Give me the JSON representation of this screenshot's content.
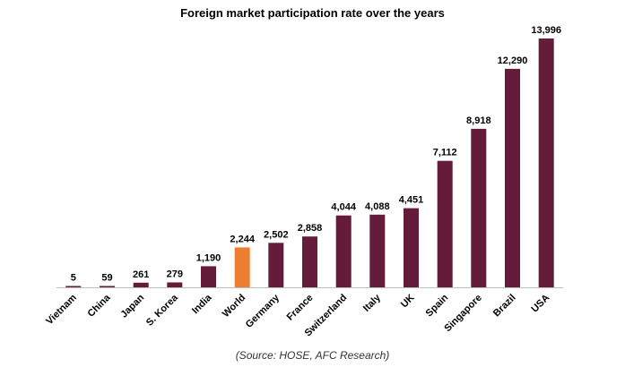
{
  "chart_data": {
    "type": "bar",
    "title": "Foreign market participation rate over the years",
    "categories": [
      "Vietnam",
      "China",
      "Japan",
      "S. Korea",
      "India",
      "World",
      "Germany",
      "France",
      "Switzerland",
      "Italy",
      "UK",
      "Spain",
      "Singapore",
      "Brazil",
      "USA"
    ],
    "values": [
      5,
      59,
      261,
      279,
      1190,
      2244,
      2502,
      2858,
      4044,
      4088,
      4451,
      7112,
      8918,
      12290,
      13996
    ],
    "value_labels": [
      "5",
      "59",
      "261",
      "279",
      "1,190",
      "2,244",
      "2,502",
      "2,858",
      "4,044",
      "4,088",
      "4,451",
      "7,112",
      "8,918",
      "12,290",
      "13,996"
    ],
    "highlight_category": "World",
    "colors": {
      "bar": "#641C3A",
      "highlight": "#ED7D31",
      "axis": "#BFBFBF"
    },
    "xlabel": "",
    "ylabel": "",
    "ylim": [
      0,
      14000
    ],
    "grid": false,
    "legend": "none",
    "source": "(Source: HOSE, AFC Research)"
  }
}
